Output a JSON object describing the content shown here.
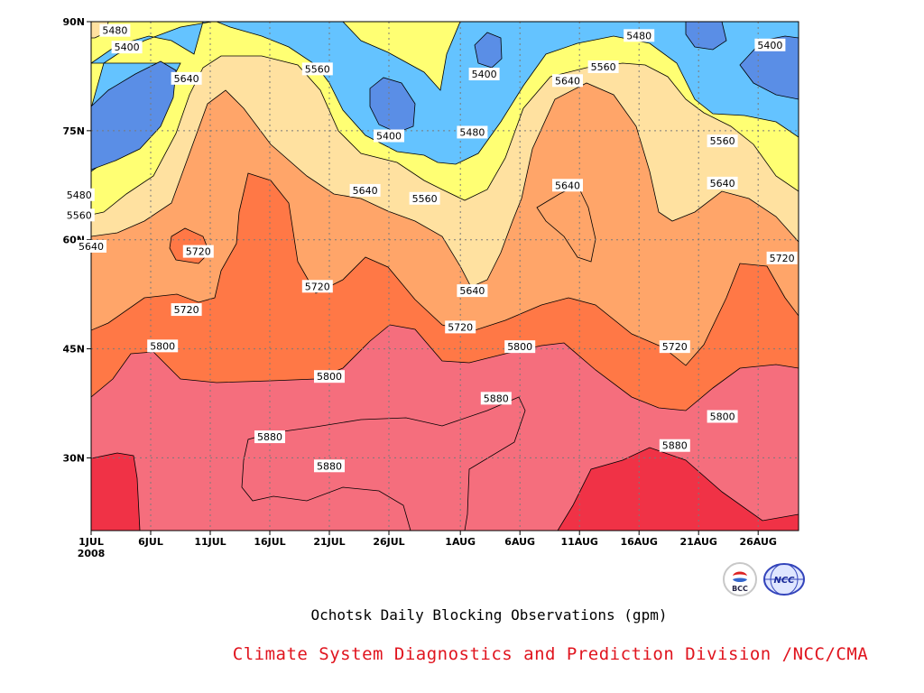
{
  "chart_data": {
    "type": "heatmap",
    "subtype": "filled-contour",
    "title": "Ochotsk Daily Blocking Observations (gpm)",
    "credit": "Climate System Diagnostics and Prediction Division /NCC/CMA",
    "x_ticks": [
      "1JUL",
      "6JUL",
      "11JUL",
      "16JUL",
      "21JUL",
      "26JUL",
      "1AUG",
      "6AUG",
      "11AUG",
      "16AUG",
      "21AUG",
      "26AUG"
    ],
    "x_year_label": "2008",
    "y_ticks": [
      "30N",
      "45N",
      "60N",
      "75N",
      "90N"
    ],
    "y_values": [
      30,
      45,
      60,
      75,
      90
    ],
    "ylim": [
      20,
      90
    ],
    "grid": true,
    "contour_levels": [
      5400,
      5480,
      5560,
      5640,
      5720,
      5800,
      5880
    ],
    "contour_labels": [
      {
        "text": "5480",
        "x": "3JUL",
        "y": 88.8
      },
      {
        "text": "5400",
        "x": "4JUL",
        "y": 86.5
      },
      {
        "text": "5640",
        "x": "9JUL",
        "y": 82.2
      },
      {
        "text": "5560",
        "x": "20JUL",
        "y": 83.5
      },
      {
        "text": "5400",
        "x": "26JUL",
        "y": 74.3
      },
      {
        "text": "5400",
        "x": "3AUG",
        "y": 82.8
      },
      {
        "text": "5480",
        "x": "2AUG",
        "y": 74.8
      },
      {
        "text": "5480",
        "x": "16AUG",
        "y": 88.1
      },
      {
        "text": "5560",
        "x": "13AUG",
        "y": 83.8
      },
      {
        "text": "5640",
        "x": "10AUG",
        "y": 81.9
      },
      {
        "text": "5400",
        "x": "27AUG",
        "y": 86.8
      },
      {
        "text": "5560",
        "x": "23AUG",
        "y": 73.6
      },
      {
        "text": "5640",
        "x": "23AUG",
        "y": 67.8
      },
      {
        "text": "5640",
        "x": "24JUL",
        "y": 66.8
      },
      {
        "text": "5560",
        "x": "29JUL",
        "y": 65.7
      },
      {
        "text": "5640",
        "x": "10AUG",
        "y": 67.5
      },
      {
        "text": "5480",
        "x": "30JUN",
        "y": 66.2
      },
      {
        "text": "5560",
        "x": "30JUN",
        "y": 63.4
      },
      {
        "text": "5640",
        "x": "1JUL",
        "y": 59.1
      },
      {
        "text": "5720",
        "x": "10JUL",
        "y": 58.4
      },
      {
        "text": "5720",
        "x": "20JUL",
        "y": 53.6
      },
      {
        "text": "5640",
        "x": "2AUG",
        "y": 53.0
      },
      {
        "text": "5720",
        "x": "9JUL",
        "y": 50.4
      },
      {
        "text": "5720",
        "x": "1AUG",
        "y": 48.0
      },
      {
        "text": "5720",
        "x": "28AUG",
        "y": 57.5
      },
      {
        "text": "5800",
        "x": "7JUL",
        "y": 45.4
      },
      {
        "text": "5800",
        "x": "6AUG",
        "y": 45.3
      },
      {
        "text": "5720",
        "x": "19AUG",
        "y": 45.3
      },
      {
        "text": "5800",
        "x": "21JUL",
        "y": 41.2
      },
      {
        "text": "5880",
        "x": "4AUG",
        "y": 38.2
      },
      {
        "text": "5800",
        "x": "23AUG",
        "y": 35.7
      },
      {
        "text": "5880",
        "x": "16JUL",
        "y": 32.9
      },
      {
        "text": "5880",
        "x": "19AUG",
        "y": 31.7
      },
      {
        "text": "5880",
        "x": "21JUL",
        "y": 28.9
      }
    ],
    "fill_colors": {
      "below_5400": "#5a8ee6",
      "5400_5480": "#64c3ff",
      "5480_5560": "#ffff73",
      "5560_5640": "#ffe1a0",
      "5640_5720": "#ffa569",
      "5720_5800": "#ff7846",
      "5800_5880": "#f56e7d",
      "above_5880": "#f03246"
    }
  },
  "logos": [
    {
      "name": "bcc-logo",
      "text": "BCC"
    },
    {
      "name": "ncc-logo",
      "text": "NCC"
    }
  ]
}
